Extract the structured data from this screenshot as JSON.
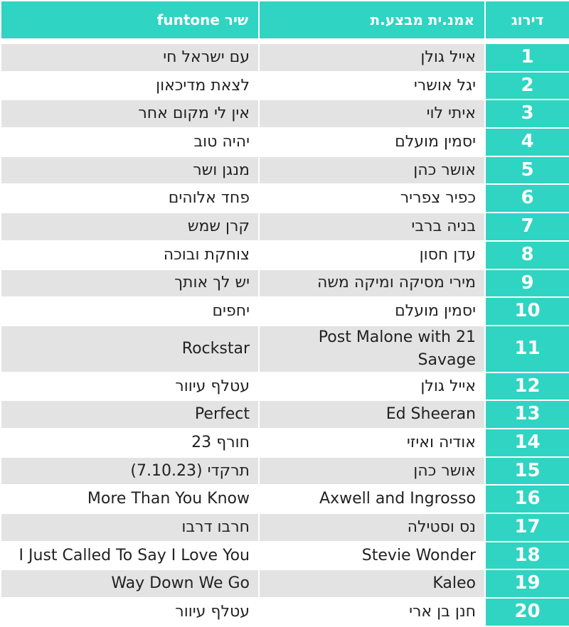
{
  "headers": {
    "rank": "דירוג",
    "artist": "אמנ.ית מבצע.ת",
    "song": "שיר funtone"
  },
  "rows": [
    {
      "rank": "1",
      "artist": "אייל גולן",
      "song": "עם ישראל חי"
    },
    {
      "rank": "2",
      "artist": "יגל אושרי",
      "song": "לצאת מדיכאון"
    },
    {
      "rank": "3",
      "artist": "איתי לוי",
      "song": "אין לי מקום אחר"
    },
    {
      "rank": "4",
      "artist": "יסמין מועלם",
      "song": "יהיה טוב"
    },
    {
      "rank": "5",
      "artist": "אושר כהן",
      "song": "מנגן ושר"
    },
    {
      "rank": "6",
      "artist": "כפיר צפריר",
      "song": "פחד אלוהים"
    },
    {
      "rank": "7",
      "artist": "בניה ברבי",
      "song": "קרן שמש"
    },
    {
      "rank": "8",
      "artist": "עדן חסון",
      "song": "צוחקת ובוכה"
    },
    {
      "rank": "9",
      "artist": "מירי מסיקה ומיקה משה",
      "song": "יש לך אותך"
    },
    {
      "rank": "10",
      "artist": "יסמין מועלם",
      "song": "יחפים"
    },
    {
      "rank": "11",
      "artist": "Post Malone with 21 Savage",
      "song": "Rockstar"
    },
    {
      "rank": "12",
      "artist": "אייל גולן",
      "song": "עטלף עיוור"
    },
    {
      "rank": "13",
      "artist": "Ed Sheeran",
      "song": "Perfect"
    },
    {
      "rank": "14",
      "artist": "אודיה ואיזי",
      "song": "חורף 23"
    },
    {
      "rank": "15",
      "artist": "אושר כהן",
      "song": "תרקדי (7.10.23)"
    },
    {
      "rank": "16",
      "artist": "Axwell and Ingrosso",
      "song": "More Than You Know"
    },
    {
      "rank": "17",
      "artist": "נס וסטילה",
      "song": "חרבו דרבו"
    },
    {
      "rank": "18",
      "artist": "Stevie Wonder",
      "song": "I Just Called To Say I Love You"
    },
    {
      "rank": "19",
      "artist": "Kaleo",
      "song": "Way Down We Go"
    },
    {
      "rank": "20",
      "artist": "חנן בן ארי",
      "song": "עטלף עיוור"
    }
  ],
  "colors": {
    "header_bg": "#2fd4c2",
    "rank_bg": "#2fd4c2",
    "row_alt": "#e3e3e3",
    "row_plain": "#ffffff"
  }
}
